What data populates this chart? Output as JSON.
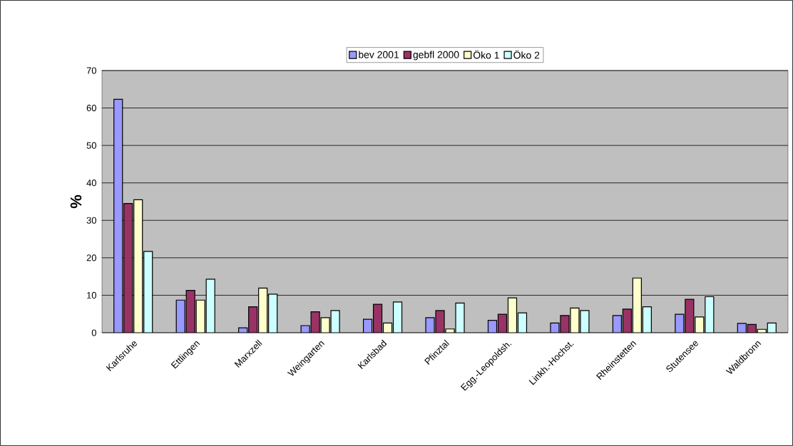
{
  "chart_data": {
    "type": "bar",
    "ylabel": "%",
    "categories": [
      "Karlsruhe",
      "Ettlingen",
      "Marxzell",
      "Weingarten",
      "Karlsbad",
      "Pfinztal",
      "Egg.-Leopoldsh.",
      "Linkh.-Hochst.",
      "Rheinstetten",
      "Stutensee",
      "Waldbronn"
    ],
    "series": [
      {
        "name": "bev 2001",
        "color": "#9999ff",
        "values": [
          62.3,
          8.7,
          1.3,
          1.9,
          3.6,
          4.0,
          3.3,
          2.6,
          4.6,
          4.9,
          2.5
        ]
      },
      {
        "name": "gebfl 2000",
        "color": "#993366",
        "values": [
          34.5,
          11.3,
          6.9,
          5.6,
          7.6,
          5.9,
          4.9,
          4.6,
          6.3,
          8.9,
          2.2
        ]
      },
      {
        "name": "Öko 1",
        "color": "#ffffcc",
        "values": [
          35.5,
          8.7,
          11.9,
          4.0,
          2.6,
          1.0,
          9.3,
          6.6,
          14.6,
          4.2,
          0.9
        ]
      },
      {
        "name": "Öko 2",
        "color": "#ccffff",
        "values": [
          21.7,
          14.3,
          10.3,
          5.9,
          8.2,
          7.9,
          5.3,
          5.9,
          6.9,
          9.6,
          2.6
        ]
      }
    ],
    "ylim": [
      0,
      70
    ],
    "yticks": [
      0,
      10,
      20,
      30,
      40,
      50,
      60,
      70
    ],
    "grid": "y",
    "legend": "top"
  }
}
